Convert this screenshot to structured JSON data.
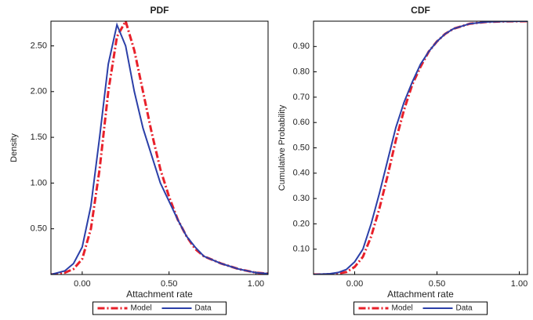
{
  "chart_data": [
    {
      "type": "line",
      "title": "PDF",
      "xlabel": "Attachment rate",
      "ylabel": "Density",
      "x": [
        -0.18,
        -0.1,
        -0.05,
        0,
        0.05,
        0.1,
        0.15,
        0.2,
        0.25,
        0.3,
        0.35,
        0.4,
        0.45,
        0.5,
        0.55,
        0.6,
        0.65,
        0.7,
        0.8,
        0.9,
        1.0,
        1.07
      ],
      "series": [
        {
          "name": "Model",
          "color": "#e8202a",
          "dash": "dashdot",
          "values": [
            0,
            0.02,
            0.06,
            0.17,
            0.5,
            1.15,
            2.0,
            2.6,
            2.77,
            2.45,
            2.0,
            1.55,
            1.15,
            0.85,
            0.6,
            0.42,
            0.28,
            0.2,
            0.12,
            0.06,
            0.02,
            0.01
          ]
        },
        {
          "name": "Data",
          "color": "#2b3fa8",
          "dash": "solid",
          "values": [
            0,
            0.04,
            0.12,
            0.3,
            0.75,
            1.5,
            2.3,
            2.73,
            2.5,
            2.0,
            1.6,
            1.3,
            1.0,
            0.8,
            0.6,
            0.42,
            0.3,
            0.2,
            0.12,
            0.06,
            0.02,
            0.01
          ]
        }
      ],
      "xlim": [
        -0.18,
        1.07
      ],
      "ylim": [
        0,
        2.77
      ],
      "xticks": [
        {
          "value": 0,
          "label": "0.00"
        },
        {
          "value": 0.5,
          "label": "0.50"
        },
        {
          "value": 1,
          "label": "1.00"
        }
      ],
      "yticks": [
        {
          "value": 0.5,
          "label": "0.50"
        },
        {
          "value": 1,
          "label": "1.00"
        },
        {
          "value": 1.5,
          "label": "1.50"
        },
        {
          "value": 2,
          "label": "2.00"
        },
        {
          "value": 2.5,
          "label": "2.50"
        }
      ],
      "legend": "bottom"
    },
    {
      "type": "line",
      "title": "CDF",
      "xlabel": "Attachment rate",
      "ylabel": "Cumulative Probability",
      "x": [
        -0.25,
        -0.15,
        -0.1,
        -0.05,
        0,
        0.05,
        0.1,
        0.15,
        0.2,
        0.25,
        0.3,
        0.35,
        0.4,
        0.45,
        0.5,
        0.55,
        0.6,
        0.7,
        0.8,
        0.9,
        1.05
      ],
      "series": [
        {
          "name": "Model",
          "color": "#e8202a",
          "dash": "dashdot",
          "values": [
            0,
            0.001,
            0.004,
            0.01,
            0.03,
            0.07,
            0.15,
            0.26,
            0.39,
            0.53,
            0.65,
            0.75,
            0.82,
            0.88,
            0.92,
            0.95,
            0.97,
            0.99,
            0.997,
            0.999,
            1.0
          ]
        },
        {
          "name": "Data",
          "color": "#2b3fa8",
          "dash": "solid",
          "values": [
            0,
            0.003,
            0.008,
            0.02,
            0.05,
            0.1,
            0.2,
            0.32,
            0.45,
            0.58,
            0.68,
            0.76,
            0.83,
            0.88,
            0.92,
            0.95,
            0.97,
            0.99,
            0.997,
            0.999,
            1.0
          ]
        }
      ],
      "xlim": [
        -0.25,
        1.05
      ],
      "ylim": [
        0,
        1.0
      ],
      "xticks": [
        {
          "value": 0,
          "label": "0.00"
        },
        {
          "value": 0.5,
          "label": "0.50"
        },
        {
          "value": 1,
          "label": "1.00"
        }
      ],
      "yticks": [
        {
          "value": 0.1,
          "label": "0.10"
        },
        {
          "value": 0.2,
          "label": "0.20"
        },
        {
          "value": 0.3,
          "label": "0.30"
        },
        {
          "value": 0.4,
          "label": "0.40"
        },
        {
          "value": 0.5,
          "label": "0.50"
        },
        {
          "value": 0.6,
          "label": "0.60"
        },
        {
          "value": 0.7,
          "label": "0.70"
        },
        {
          "value": 0.8,
          "label": "0.80"
        },
        {
          "value": 0.9,
          "label": "0.90"
        }
      ],
      "legend": "bottom"
    }
  ]
}
